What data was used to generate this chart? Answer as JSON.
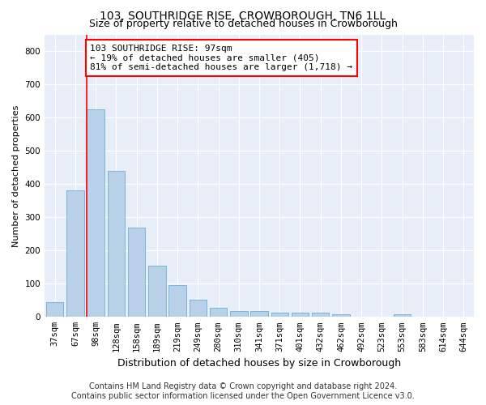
{
  "title": "103, SOUTHRIDGE RISE, CROWBOROUGH, TN6 1LL",
  "subtitle": "Size of property relative to detached houses in Crowborough",
  "xlabel": "Distribution of detached houses by size in Crowborough",
  "ylabel": "Number of detached properties",
  "categories": [
    "37sqm",
    "67sqm",
    "98sqm",
    "128sqm",
    "158sqm",
    "189sqm",
    "219sqm",
    "249sqm",
    "280sqm",
    "310sqm",
    "341sqm",
    "371sqm",
    "401sqm",
    "432sqm",
    "462sqm",
    "492sqm",
    "523sqm",
    "553sqm",
    "583sqm",
    "614sqm",
    "644sqm"
  ],
  "values": [
    45,
    382,
    625,
    440,
    268,
    155,
    97,
    52,
    28,
    17,
    17,
    12,
    12,
    12,
    7,
    0,
    0,
    7,
    0,
    0,
    0
  ],
  "bar_color": "#b8d0e8",
  "bar_edge_color": "#6aaed6",
  "red_line_bar_index": 2,
  "annotation_text_line1": "103 SOUTHRIDGE RISE: 97sqm",
  "annotation_text_line2": "← 19% of detached houses are smaller (405)",
  "annotation_text_line3": "81% of semi-detached houses are larger (1,718) →",
  "annotation_box_color": "white",
  "annotation_box_edge": "red",
  "ylim": [
    0,
    850
  ],
  "yticks": [
    0,
    100,
    200,
    300,
    400,
    500,
    600,
    700,
    800
  ],
  "background_color": "#e8eef8",
  "grid_color": "white",
  "footer_line1": "Contains HM Land Registry data © Crown copyright and database right 2024.",
  "footer_line2": "Contains public sector information licensed under the Open Government Licence v3.0.",
  "title_fontsize": 10,
  "subtitle_fontsize": 9,
  "xlabel_fontsize": 9,
  "ylabel_fontsize": 8,
  "tick_fontsize": 7.5,
  "annotation_fontsize": 8,
  "footer_fontsize": 7
}
